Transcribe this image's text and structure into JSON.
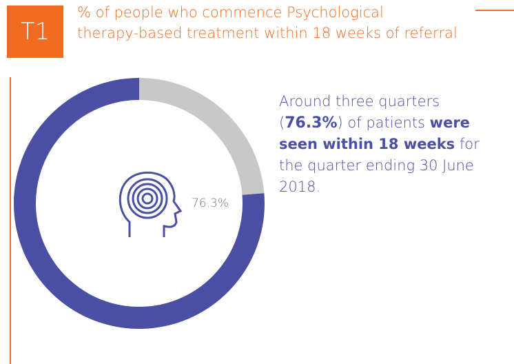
{
  "badge": "T1",
  "title_lines": [
    "% of people who commence Psychological",
    "therapy-based treatment within 18 weeks of referral"
  ],
  "description": [
    {
      "text": "Around three quarters (",
      "style": "normal"
    },
    {
      "text": "76.3%",
      "style": "heavy"
    },
    {
      "text": ") of patients ",
      "style": "normal"
    },
    {
      "text": "were seen within 18 weeks",
      "style": "bold"
    },
    {
      "text": " for the quarter ending 30 June 2018.",
      "style": "normal"
    }
  ],
  "chart_data": {
    "type": "donut",
    "values": [
      76.3,
      23.7
    ],
    "value_labels": [
      "76.3%",
      null
    ],
    "colors": [
      "#4b4fa3",
      "#c8c8c8"
    ]
  }
}
